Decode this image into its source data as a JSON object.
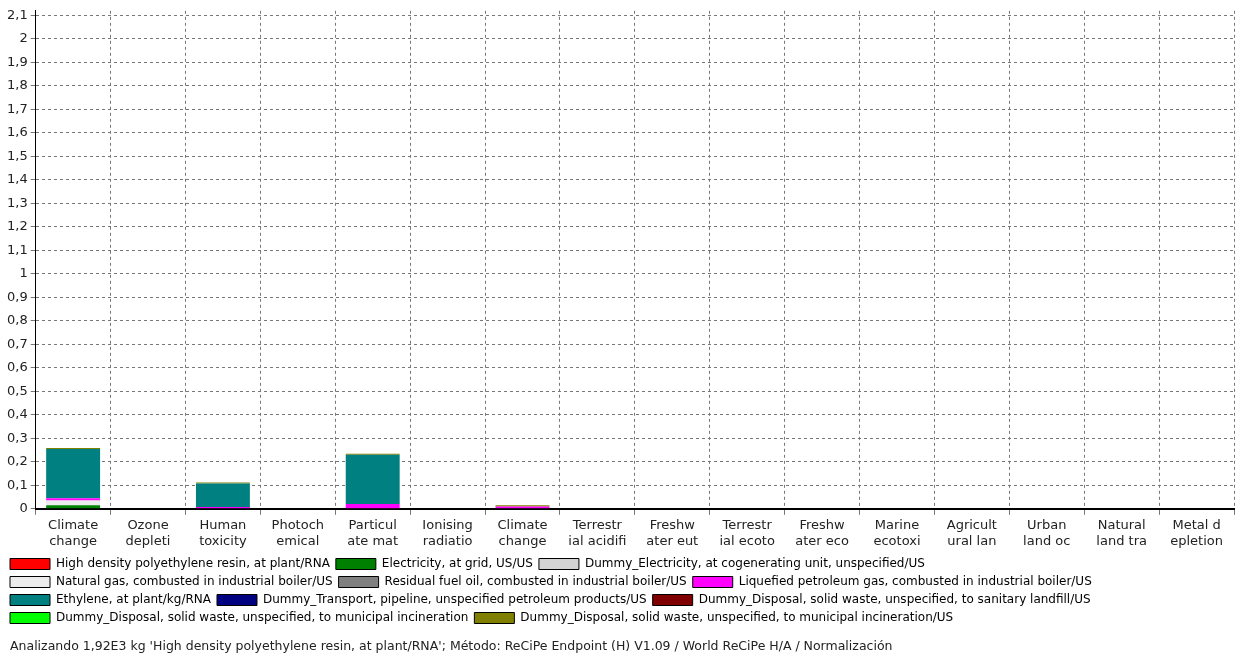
{
  "chart_data": {
    "type": "bar",
    "stacked": true,
    "grid": true,
    "legend": "bottom",
    "categories": [
      "Climate\nchange",
      "Ozone\ndepleti",
      "Human\ntoxicity",
      "Photoch\nemical",
      "Particul\nate mat",
      "Ionising\nradiatio",
      "Climate\nchange",
      "Terrestr\nial acidifi",
      "Freshw\nater eut",
      "Terrestr\nial ecoto",
      "Freshw\nater eco",
      "Marine\necotoxi",
      "Agricult\nural lan",
      "Urban\nland oc",
      "Natural\nland tra",
      "Metal d\nepletion"
    ],
    "ylim": [
      0,
      2.12
    ],
    "yticks": [
      {
        "value": 0,
        "label": "0"
      },
      {
        "value": 0.1,
        "label": "0,1"
      },
      {
        "value": 0.2,
        "label": "0,2"
      },
      {
        "value": 0.3,
        "label": "0,3"
      },
      {
        "value": 0.4,
        "label": "0,4"
      },
      {
        "value": 0.5,
        "label": "0,5"
      },
      {
        "value": 0.6,
        "label": "0,6"
      },
      {
        "value": 0.7,
        "label": "0,7"
      },
      {
        "value": 0.8,
        "label": "0,8"
      },
      {
        "value": 0.9,
        "label": "0,9"
      },
      {
        "value": 1,
        "label": "1"
      },
      {
        "value": 1.1,
        "label": "1,1"
      },
      {
        "value": 1.2,
        "label": "1,2"
      },
      {
        "value": 1.3,
        "label": "1,3"
      },
      {
        "value": 1.4,
        "label": "1,4"
      },
      {
        "value": 1.5,
        "label": "1,5"
      },
      {
        "value": 1.6,
        "label": "1,6"
      },
      {
        "value": 1.7,
        "label": "1,7"
      },
      {
        "value": 1.8,
        "label": "1,8"
      },
      {
        "value": 1.9,
        "label": "1,9"
      },
      {
        "value": 2,
        "label": "2"
      },
      {
        "value": 2.1,
        "label": "2,1"
      }
    ],
    "series": [
      {
        "name": "High density polyethylene resin, at plant/RNA",
        "color": "#ff0000",
        "values": [
          0,
          0,
          0,
          0,
          0,
          0,
          0,
          0,
          0,
          0,
          0,
          0,
          0,
          0,
          0,
          0
        ]
      },
      {
        "name": "Electricity, at grid, US/US",
        "color": "#008000",
        "values": [
          0.015,
          0,
          0,
          0,
          0,
          0,
          0,
          0,
          0,
          0,
          0,
          0,
          0,
          0,
          0,
          0
        ]
      },
      {
        "name": "Dummy_Electricity, at cogenerating unit, unspecified/US",
        "color": "#d4d4d4",
        "values": [
          0,
          0,
          0,
          0,
          0,
          0,
          0,
          0,
          0,
          0,
          0,
          0,
          0,
          0,
          0,
          0
        ]
      },
      {
        "name": "Natural gas, combusted in industrial boiler/US",
        "color": "#ececec",
        "values": [
          0.02,
          0,
          0,
          0,
          0,
          0,
          0,
          0,
          0,
          0,
          0,
          0,
          0,
          0,
          0,
          0
        ]
      },
      {
        "name": "Residual fuel oil, combusted in industrial boiler/US",
        "color": "#808080",
        "values": [
          0,
          0,
          0,
          0,
          0,
          0,
          0,
          0,
          0,
          0,
          0,
          0,
          0,
          0,
          0,
          0
        ]
      },
      {
        "name": "Liquefied petroleum gas, combusted in industrial boiler/US",
        "color": "#ff00ff",
        "values": [
          0.01,
          0,
          0.008,
          0,
          0.02,
          0,
          0.01,
          0,
          0,
          0,
          0,
          0,
          0,
          0,
          0,
          0
        ]
      },
      {
        "name": "Ethylene, at plant/kg/RNA",
        "color": "#008080",
        "values": [
          0.21,
          0,
          0.1,
          0,
          0.21,
          0,
          0,
          0,
          0,
          0,
          0,
          0,
          0,
          0,
          0,
          0
        ]
      },
      {
        "name": "Dummy_Transport, pipeline, unspecified petroleum products/US",
        "color": "#000080",
        "values": [
          0,
          0,
          0,
          0,
          0,
          0,
          0,
          0,
          0,
          0,
          0,
          0,
          0,
          0,
          0,
          0
        ]
      },
      {
        "name": "Dummy_Disposal, solid waste, unspecified, to sanitary landfill/US",
        "color": "#800000",
        "values": [
          0,
          0,
          0,
          0,
          0,
          0,
          0,
          0,
          0,
          0,
          0,
          0,
          0,
          0,
          0,
          0
        ]
      },
      {
        "name": "Dummy_Disposal, solid waste, unspecified, to municipal incineration",
        "color": "#00ff00",
        "values": [
          0,
          0,
          0,
          0,
          0,
          0,
          0,
          0,
          0,
          0,
          0,
          0,
          0,
          0,
          0,
          0
        ]
      },
      {
        "name": "Dummy_Disposal, solid waste, unspecified, to municipal incineration/US",
        "color": "#808000",
        "values": [
          0.004,
          0,
          0.004,
          0,
          0.004,
          0,
          0.005,
          0,
          0,
          0,
          0,
          0,
          0,
          0,
          0,
          0
        ]
      }
    ],
    "annotations": [
      "Analizando 1,92E3 kg 'High density polyethylene resin, at plant/RNA';  Método: ReCiPe Endpoint (H) V1.09 / World ReCiPe H/A / Normalización"
    ]
  }
}
